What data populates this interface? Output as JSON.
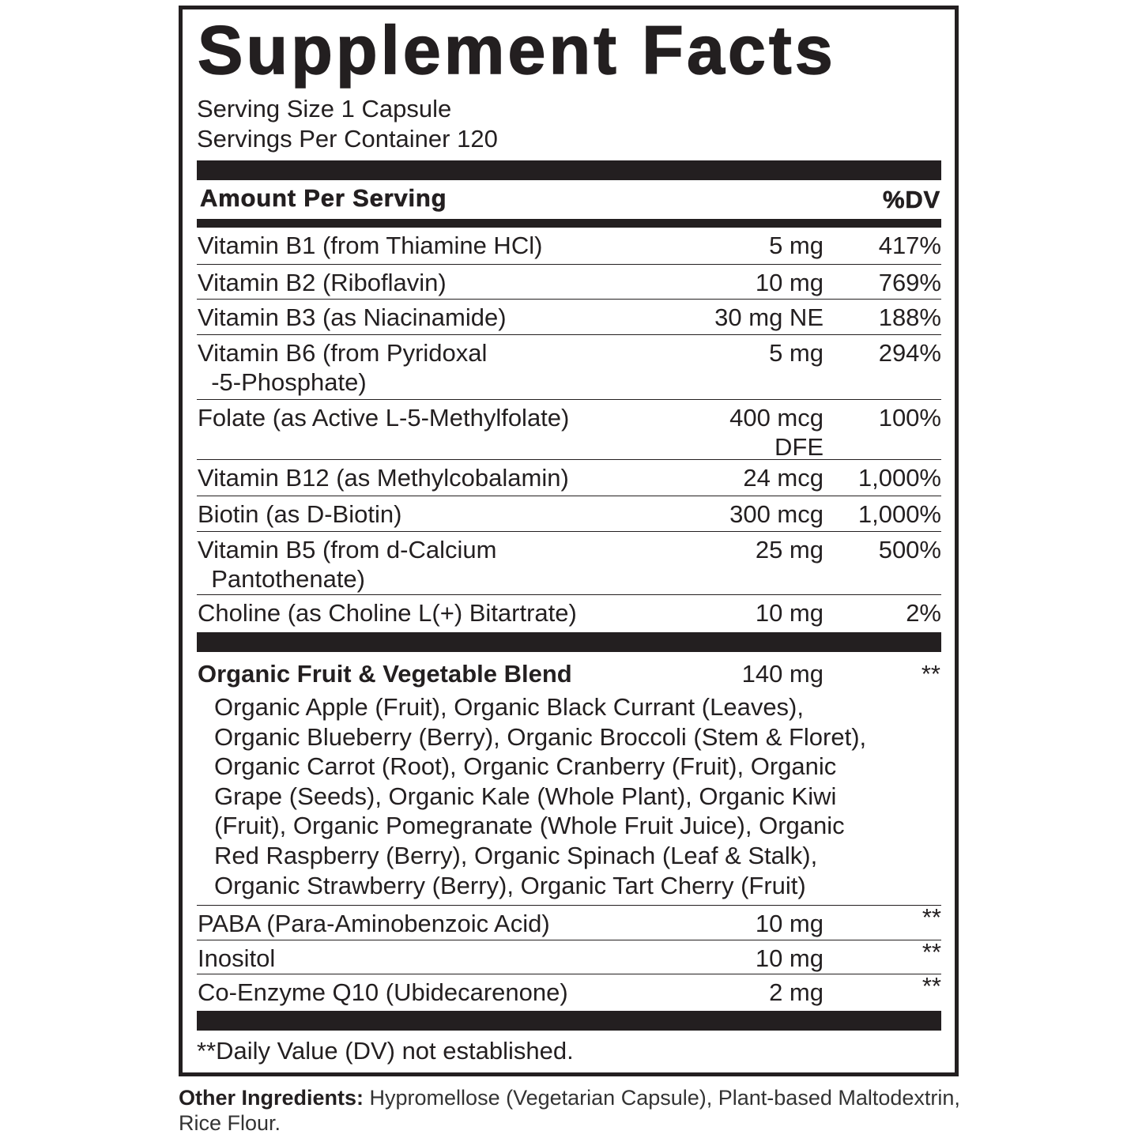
{
  "title": "Supplement Facts",
  "serving_size": "Serving Size 1 Capsule",
  "servings_per_container": "Servings Per Container 120",
  "header": {
    "amount_per_serving": "Amount Per Serving",
    "dv": "%DV"
  },
  "nutrients": [
    {
      "name": "Vitamin B1 (from Thiamine HCl)",
      "amount": "5 mg",
      "dv": "417%"
    },
    {
      "name": "Vitamin B2 (Riboflavin)",
      "amount": "10 mg",
      "dv": "769%"
    },
    {
      "name": "Vitamin B3 (as Niacinamide)",
      "amount": "30 mg NE",
      "dv": "188%"
    },
    {
      "name": "Vitamin B6 (from Pyridoxal\n  -5-Phosphate)",
      "amount": "5 mg",
      "dv": "294%"
    },
    {
      "name": "Folate (as Active L-5-Methylfolate)",
      "amount": "400 mcg\nDFE",
      "dv": "100%"
    },
    {
      "name": "Vitamin B12 (as Methylcobalamin)",
      "amount": "24 mcg",
      "dv": "1,000%"
    },
    {
      "name": "Biotin (as D-Biotin)",
      "amount": "300 mcg",
      "dv": "1,000%"
    },
    {
      "name": "Vitamin B5 (from d-Calcium\n  Pantothenate)",
      "amount": "25 mg",
      "dv": "500%"
    },
    {
      "name": "Choline (as Choline L(+) Bitartrate)",
      "amount": "10 mg",
      "dv": "2%"
    }
  ],
  "blend": {
    "name": "Organic Fruit & Vegetable Blend",
    "amount": "140 mg",
    "dv": "**",
    "ingredients": "Organic Apple (Fruit), Organic Black Currant (Leaves),\nOrganic Blueberry (Berry), Organic Broccoli (Stem & Floret),\nOrganic Carrot (Root), Organic Cranberry (Fruit), Organic\nGrape (Seeds), Organic Kale (Whole Plant), Organic Kiwi\n(Fruit), Organic Pomegranate (Whole Fruit Juice), Organic\nRed Raspberry (Berry), Organic Spinach (Leaf & Stalk),\nOrganic Strawberry (Berry), Organic Tart Cherry (Fruit)"
  },
  "others": [
    {
      "name": "PABA (Para-Aminobenzoic Acid)",
      "amount": "10 mg",
      "dv": "**"
    },
    {
      "name": "Inositol",
      "amount": "10 mg",
      "dv": "**"
    },
    {
      "name": "Co-Enzyme Q10 (Ubidecarenone)",
      "amount": "2 mg",
      "dv": "**"
    }
  ],
  "footnote": "**Daily Value (DV) not established.",
  "other_ingredients": {
    "label": "Other Ingredients:",
    "text": " Hypromellose (Vegetarian Capsule), Plant-based Maltodextrin, Rice Flour."
  }
}
